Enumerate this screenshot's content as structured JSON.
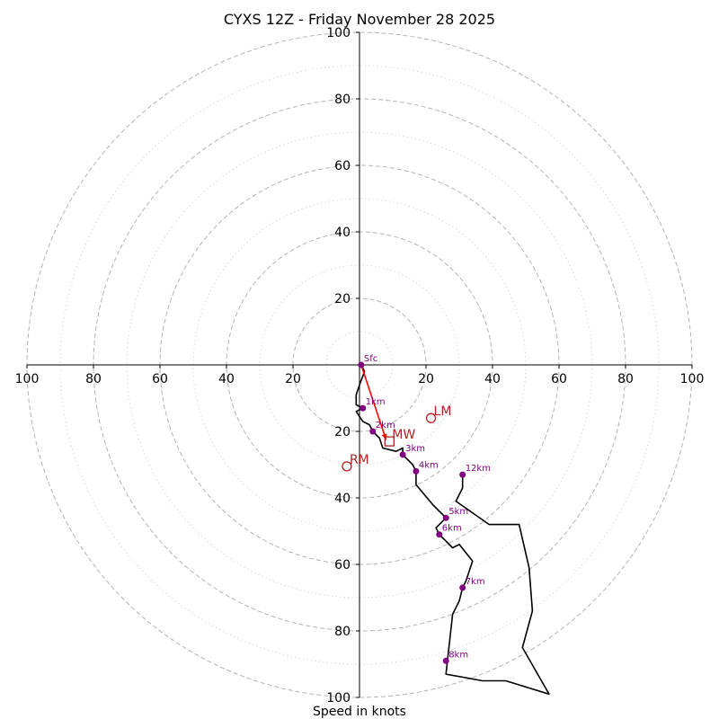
{
  "chart_data": {
    "type": "hodograph",
    "title": "CYXS 12Z - Friday November 28 2025",
    "xlabel": "Speed in knots",
    "max_speed": 100,
    "major_rings": [
      20,
      40,
      60,
      80,
      100
    ],
    "minor_rings": [
      10,
      30,
      50,
      70,
      90
    ],
    "tick_labels": {
      "x_left": [
        "100",
        "80",
        "60",
        "40",
        "20"
      ],
      "x_right": [
        "20",
        "40",
        "60",
        "80",
        "100"
      ],
      "y_up": [
        "20",
        "40",
        "60",
        "80",
        "100"
      ],
      "y_down": [
        "20",
        "40",
        "60",
        "80",
        "100"
      ]
    },
    "colors": {
      "trace": "#000000",
      "height_marker": "#800080",
      "storm_motion": "#b22222",
      "mean_wind_vector": "#ff0000",
      "major_ring": "#b3b3b3",
      "minor_ring": "#d9d9d9"
    },
    "trace": [
      {
        "u": 0.5,
        "v": 0.0
      },
      {
        "u": 1.5,
        "v": -2.0
      },
      {
        "u": 0.0,
        "v": -6.0
      },
      {
        "u": -1.0,
        "v": -9.0
      },
      {
        "u": -1.0,
        "v": -12.0
      },
      {
        "u": 1.0,
        "v": -13.0
      },
      {
        "u": -1.0,
        "v": -14.0
      },
      {
        "u": 1.0,
        "v": -17.0
      },
      {
        "u": 3.0,
        "v": -18.0
      },
      {
        "u": 4.0,
        "v": -20.0
      },
      {
        "u": 6.0,
        "v": -22.0
      },
      {
        "u": 7.0,
        "v": -25.0
      },
      {
        "u": 11.0,
        "v": -26.0
      },
      {
        "u": 13.0,
        "v": -25.0
      },
      {
        "u": 13.0,
        "v": -27.0
      },
      {
        "u": 16.0,
        "v": -30.0
      },
      {
        "u": 17.0,
        "v": -32.0
      },
      {
        "u": 17.0,
        "v": -36.0
      },
      {
        "u": 22.0,
        "v": -42.0
      },
      {
        "u": 26.0,
        "v": -46.0
      },
      {
        "u": 23.0,
        "v": -49.0
      },
      {
        "u": 24.0,
        "v": -51.0
      },
      {
        "u": 28.0,
        "v": -55.0
      },
      {
        "u": 30.0,
        "v": -54.0
      },
      {
        "u": 34.0,
        "v": -59.0
      },
      {
        "u": 32.0,
        "v": -65.0
      },
      {
        "u": 31.0,
        "v": -67.0
      },
      {
        "u": 30.0,
        "v": -71.0
      },
      {
        "u": 28.0,
        "v": -75.0
      },
      {
        "u": 27.0,
        "v": -84.0
      },
      {
        "u": 26.0,
        "v": -93.0
      },
      {
        "u": 37.0,
        "v": -95.0
      },
      {
        "u": 44.0,
        "v": -95.0
      },
      {
        "u": 57.0,
        "v": -99.0
      },
      {
        "u": 49.0,
        "v": -85.0
      },
      {
        "u": 52.0,
        "v": -74.0
      },
      {
        "u": 51.0,
        "v": -61.0
      },
      {
        "u": 48.0,
        "v": -48.0
      },
      {
        "u": 39.0,
        "v": -48.0
      },
      {
        "u": 29.0,
        "v": -41.0
      },
      {
        "u": 31.0,
        "v": -37.0
      },
      {
        "u": 31.0,
        "v": -33.0
      }
    ],
    "height_markers": [
      {
        "label": "Sfc",
        "u": 0.5,
        "v": 0.0
      },
      {
        "label": "1km",
        "u": 1.0,
        "v": -13.0
      },
      {
        "label": "2km",
        "u": 4.0,
        "v": -20.0
      },
      {
        "label": "3km",
        "u": 13.0,
        "v": -27.0
      },
      {
        "label": "4km",
        "u": 17.0,
        "v": -32.0
      },
      {
        "label": "5km",
        "u": 26.0,
        "v": -46.0
      },
      {
        "label": "6km",
        "u": 24.0,
        "v": -51.0
      },
      {
        "label": "7km",
        "u": 31.0,
        "v": -67.0
      },
      {
        "label": "8km",
        "u": 26.0,
        "v": -89.0
      },
      {
        "label": "12km",
        "u": 31.0,
        "v": -33.0
      }
    ],
    "storm_motions": [
      {
        "label": "LM",
        "u": 21.5,
        "v": -16.0,
        "marker": "circle"
      },
      {
        "label": "RM",
        "u": -3.8,
        "v": -30.5,
        "marker": "circle"
      },
      {
        "label": "MW",
        "u": 9.0,
        "v": -23.0,
        "marker": "square"
      }
    ],
    "mean_wind_vector": {
      "from": {
        "u": 0.5,
        "v": 0.0
      },
      "to": {
        "u": 8.0,
        "v": -22.5
      }
    }
  }
}
